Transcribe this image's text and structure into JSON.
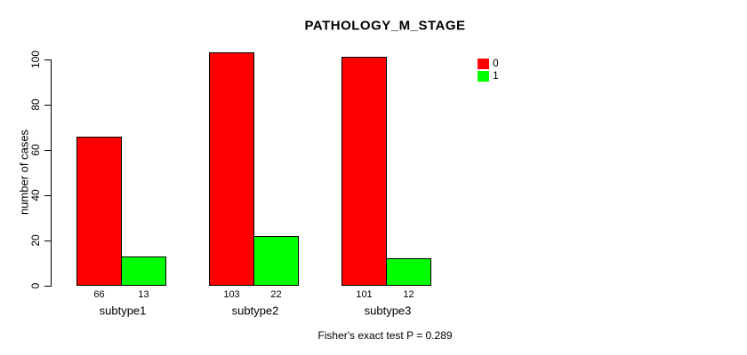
{
  "chart_data": {
    "type": "bar",
    "title": "PATHOLOGY_M_STAGE",
    "ylabel": "number of cases",
    "xlabel": "",
    "categories": [
      "subtype1",
      "subtype2",
      "subtype3"
    ],
    "series": [
      {
        "name": "0",
        "color": "#FF0000",
        "values": [
          66,
          103,
          101
        ]
      },
      {
        "name": "1",
        "color": "#00FF00",
        "values": [
          13,
          22,
          12
        ]
      }
    ],
    "bar_value_labels": [
      [
        66,
        13
      ],
      [
        103,
        22
      ],
      [
        101,
        12
      ]
    ],
    "ylim": [
      0,
      100
    ],
    "yticks": [
      0,
      20,
      40,
      60,
      80,
      100
    ],
    "grid": false,
    "legend_position": "top-right",
    "footnote": "Fisher's exact test P = 0.289",
    "text_color": "#000000",
    "background_color": "#FFFFFF"
  }
}
